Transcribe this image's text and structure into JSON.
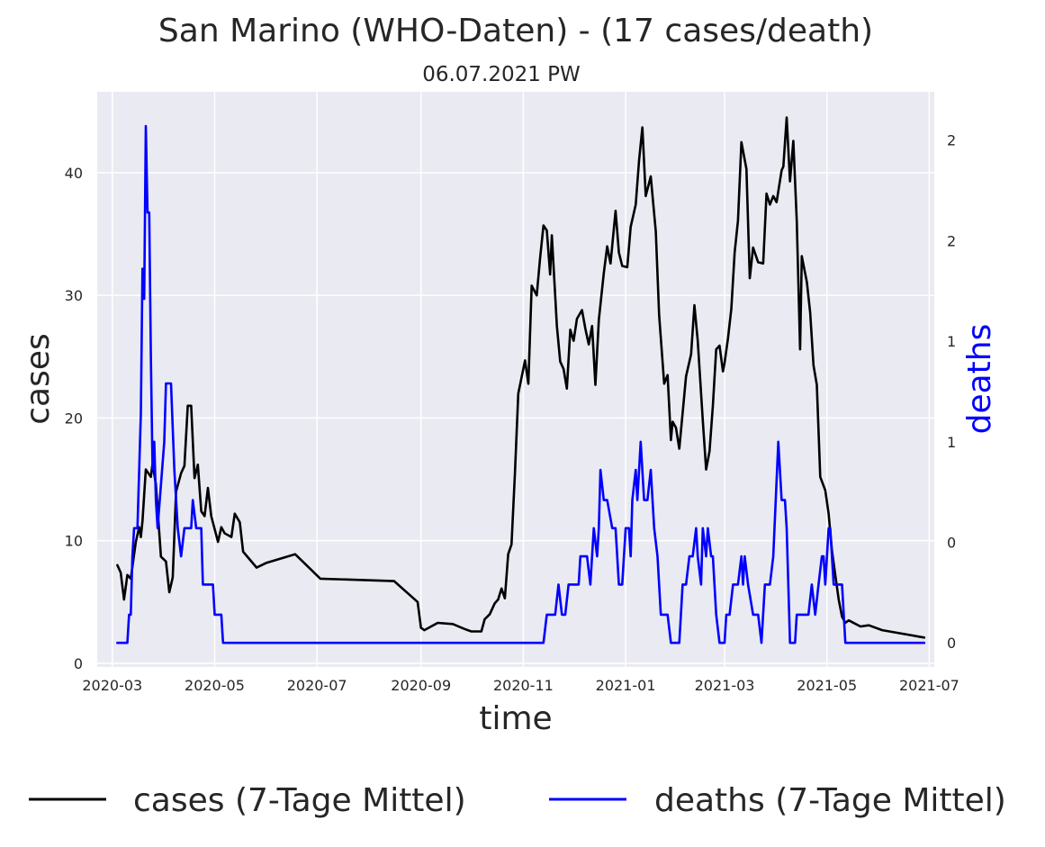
{
  "chart_data": {
    "type": "line",
    "title": "San Marino (WHO-Daten) - (17 cases/death)",
    "subtitle": "06.07.2021 PW",
    "xlabel": "time",
    "ylabel_left": "cases",
    "ylabel_right": "deaths",
    "x_ticks": [
      "2020-03",
      "2020-05",
      "2020-07",
      "2020-09",
      "2020-11",
      "2021-01",
      "2021-03",
      "2021-05",
      "2021-07"
    ],
    "x_range": [
      "2020-02-21",
      "2021-07-04"
    ],
    "y_left_ticks": [
      "0",
      "10",
      "20",
      "30",
      "40"
    ],
    "y_left_range": [
      -0.3,
      46.6
    ],
    "y_right_ticks": [
      {
        "value": 0.0,
        "label": "0"
      },
      {
        "value": 0.5,
        "label": "0"
      },
      {
        "value": 1.0,
        "label": "1"
      },
      {
        "value": 1.5,
        "label": "1"
      },
      {
        "value": 2.0,
        "label": "2"
      },
      {
        "value": 2.5,
        "label": "2"
      }
    ],
    "y_right_range": [
      -0.12,
      2.74
    ],
    "grid": true,
    "legend_position": "bottom",
    "series": [
      {
        "name": "cases (7-Tage Mittel)",
        "axis": "left",
        "color": "#000000",
        "points": [
          [
            "2020-03-04",
            8.0
          ],
          [
            "2020-03-06",
            7.4
          ],
          [
            "2020-03-08",
            5.2
          ],
          [
            "2020-03-10",
            7.2
          ],
          [
            "2020-03-12",
            6.9
          ],
          [
            "2020-03-15",
            9.9
          ],
          [
            "2020-03-17",
            11.1
          ],
          [
            "2020-03-18",
            10.3
          ],
          [
            "2020-03-19",
            11.6
          ],
          [
            "2020-03-21",
            15.8
          ],
          [
            "2020-03-24",
            15.2
          ],
          [
            "2020-03-25",
            16.3
          ],
          [
            "2020-03-27",
            14.6
          ],
          [
            "2020-03-30",
            8.7
          ],
          [
            "2020-04-02",
            8.3
          ],
          [
            "2020-04-04",
            5.8
          ],
          [
            "2020-04-06",
            7.0
          ],
          [
            "2020-04-08",
            14.0
          ],
          [
            "2020-04-11",
            15.5
          ],
          [
            "2020-04-13",
            16.1
          ],
          [
            "2020-04-15",
            21.0
          ],
          [
            "2020-04-17",
            21.0
          ],
          [
            "2020-04-19",
            15.1
          ],
          [
            "2020-04-21",
            16.2
          ],
          [
            "2020-04-23",
            12.4
          ],
          [
            "2020-04-25",
            12.0
          ],
          [
            "2020-04-27",
            14.3
          ],
          [
            "2020-04-29",
            12.0
          ],
          [
            "2020-05-03",
            9.9
          ],
          [
            "2020-05-05",
            11.1
          ],
          [
            "2020-05-07",
            10.6
          ],
          [
            "2020-05-11",
            10.3
          ],
          [
            "2020-05-13",
            12.2
          ],
          [
            "2020-05-16",
            11.5
          ],
          [
            "2020-05-18",
            9.1
          ],
          [
            "2020-05-26",
            7.8
          ],
          [
            "2020-06-01",
            8.2
          ],
          [
            "2020-06-18",
            8.9
          ],
          [
            "2020-07-03",
            6.9
          ],
          [
            "2020-08-16",
            6.7
          ],
          [
            "2020-08-30",
            5.0
          ],
          [
            "2020-09-01",
            2.9
          ],
          [
            "2020-09-03",
            2.7
          ],
          [
            "2020-09-11",
            3.3
          ],
          [
            "2020-09-20",
            3.2
          ],
          [
            "2020-09-27",
            2.8
          ],
          [
            "2020-10-01",
            2.6
          ],
          [
            "2020-10-07",
            2.6
          ],
          [
            "2020-10-09",
            3.6
          ],
          [
            "2020-10-12",
            4.0
          ],
          [
            "2020-10-15",
            4.9
          ],
          [
            "2020-10-17",
            5.2
          ],
          [
            "2020-10-19",
            6.1
          ],
          [
            "2020-10-21",
            5.3
          ],
          [
            "2020-10-23",
            8.9
          ],
          [
            "2020-10-25",
            9.7
          ],
          [
            "2020-10-27",
            15.5
          ],
          [
            "2020-10-29",
            22.0
          ],
          [
            "2020-11-01",
            24.0
          ],
          [
            "2020-11-02",
            24.7
          ],
          [
            "2020-11-04",
            22.8
          ],
          [
            "2020-11-06",
            30.8
          ],
          [
            "2020-11-09",
            30.0
          ],
          [
            "2020-11-11",
            33.0
          ],
          [
            "2020-11-13",
            35.7
          ],
          [
            "2020-11-15",
            35.3
          ],
          [
            "2020-11-17",
            31.7
          ],
          [
            "2020-11-18",
            34.9
          ],
          [
            "2020-11-21",
            27.5
          ],
          [
            "2020-11-23",
            24.6
          ],
          [
            "2020-11-25",
            24.0
          ],
          [
            "2020-11-27",
            22.4
          ],
          [
            "2020-11-29",
            27.2
          ],
          [
            "2020-12-01",
            26.3
          ],
          [
            "2020-12-03",
            28.1
          ],
          [
            "2020-12-06",
            28.8
          ],
          [
            "2020-12-08",
            27.3
          ],
          [
            "2020-12-10",
            26.0
          ],
          [
            "2020-12-12",
            27.5
          ],
          [
            "2020-12-14",
            22.7
          ],
          [
            "2020-12-16",
            28.0
          ],
          [
            "2020-12-19",
            31.8
          ],
          [
            "2020-12-21",
            34.0
          ],
          [
            "2020-12-23",
            32.6
          ],
          [
            "2020-12-26",
            36.9
          ],
          [
            "2020-12-28",
            33.5
          ],
          [
            "2020-12-30",
            32.4
          ],
          [
            "2021-01-02",
            32.3
          ],
          [
            "2021-01-04",
            35.6
          ],
          [
            "2021-01-07",
            37.4
          ],
          [
            "2021-01-09",
            41.0
          ],
          [
            "2021-01-11",
            43.7
          ],
          [
            "2021-01-13",
            38.1
          ],
          [
            "2021-01-16",
            39.7
          ],
          [
            "2021-01-19",
            35.2
          ],
          [
            "2021-01-21",
            28.4
          ],
          [
            "2021-01-24",
            22.8
          ],
          [
            "2021-01-26",
            23.5
          ],
          [
            "2021-01-28",
            18.2
          ],
          [
            "2021-01-29",
            19.7
          ],
          [
            "2021-01-31",
            19.2
          ],
          [
            "2021-02-02",
            17.5
          ],
          [
            "2021-02-05",
            21.9
          ],
          [
            "2021-02-06",
            23.4
          ],
          [
            "2021-02-09",
            25.2
          ],
          [
            "2021-02-11",
            29.2
          ],
          [
            "2021-02-13",
            26.3
          ],
          [
            "2021-02-16",
            19.8
          ],
          [
            "2021-02-18",
            15.8
          ],
          [
            "2021-02-20",
            17.3
          ],
          [
            "2021-02-22",
            21.0
          ],
          [
            "2021-02-24",
            25.6
          ],
          [
            "2021-02-26",
            25.9
          ],
          [
            "2021-02-28",
            23.8
          ],
          [
            "2021-03-01",
            24.5
          ],
          [
            "2021-03-03",
            26.5
          ],
          [
            "2021-03-05",
            28.9
          ],
          [
            "2021-03-07",
            33.5
          ],
          [
            "2021-03-09",
            36.1
          ],
          [
            "2021-03-11",
            42.5
          ],
          [
            "2021-03-14",
            40.3
          ],
          [
            "2021-03-16",
            31.4
          ],
          [
            "2021-03-18",
            33.9
          ],
          [
            "2021-03-21",
            32.7
          ],
          [
            "2021-03-24",
            32.6
          ],
          [
            "2021-03-26",
            38.3
          ],
          [
            "2021-03-28",
            37.4
          ],
          [
            "2021-03-30",
            38.1
          ],
          [
            "2021-04-01",
            37.6
          ],
          [
            "2021-04-04",
            40.2
          ],
          [
            "2021-04-05",
            40.5
          ],
          [
            "2021-04-07",
            44.5
          ],
          [
            "2021-04-09",
            39.3
          ],
          [
            "2021-04-11",
            42.6
          ],
          [
            "2021-04-13",
            36.1
          ],
          [
            "2021-04-15",
            25.6
          ],
          [
            "2021-04-16",
            33.2
          ],
          [
            "2021-04-19",
            31.1
          ],
          [
            "2021-04-21",
            28.6
          ],
          [
            "2021-04-23",
            24.3
          ],
          [
            "2021-04-25",
            22.7
          ],
          [
            "2021-04-27",
            15.2
          ],
          [
            "2021-04-30",
            14.1
          ],
          [
            "2021-05-02",
            12.2
          ],
          [
            "2021-05-04",
            9.2
          ],
          [
            "2021-05-06",
            7.2
          ],
          [
            "2021-05-08",
            5.2
          ],
          [
            "2021-05-10",
            3.8
          ],
          [
            "2021-05-12",
            3.3
          ],
          [
            "2021-05-14",
            3.5
          ],
          [
            "2021-05-21",
            3.0
          ],
          [
            "2021-05-26",
            3.1
          ],
          [
            "2021-06-03",
            2.7
          ],
          [
            "2021-06-28",
            2.1
          ]
        ]
      },
      {
        "name": "deaths (7-Tage Mittel)",
        "axis": "right",
        "color": "#0000ff",
        "points": [
          [
            "2020-03-04",
            0.0
          ],
          [
            "2020-03-10",
            0.0
          ],
          [
            "2020-03-11",
            0.14
          ],
          [
            "2020-03-12",
            0.14
          ],
          [
            "2020-03-13",
            0.43
          ],
          [
            "2020-03-14",
            0.57
          ],
          [
            "2020-03-16",
            0.57
          ],
          [
            "2020-03-18",
            1.14
          ],
          [
            "2020-03-19",
            1.86
          ],
          [
            "2020-03-20",
            1.71
          ],
          [
            "2020-03-21",
            2.57
          ],
          [
            "2020-03-22",
            2.14
          ],
          [
            "2020-03-23",
            2.14
          ],
          [
            "2020-03-24",
            1.43
          ],
          [
            "2020-03-25",
            0.86
          ],
          [
            "2020-03-26",
            1.0
          ],
          [
            "2020-03-27",
            0.71
          ],
          [
            "2020-03-28",
            0.57
          ],
          [
            "2020-04-01",
            1.0
          ],
          [
            "2020-04-02",
            1.29
          ],
          [
            "2020-04-05",
            1.29
          ],
          [
            "2020-04-07",
            0.86
          ],
          [
            "2020-04-09",
            0.57
          ],
          [
            "2020-04-11",
            0.43
          ],
          [
            "2020-04-13",
            0.57
          ],
          [
            "2020-04-17",
            0.57
          ],
          [
            "2020-04-18",
            0.71
          ],
          [
            "2020-04-20",
            0.57
          ],
          [
            "2020-04-23",
            0.57
          ],
          [
            "2020-04-24",
            0.29
          ],
          [
            "2020-04-30",
            0.29
          ],
          [
            "2020-05-01",
            0.14
          ],
          [
            "2020-05-05",
            0.14
          ],
          [
            "2020-05-06",
            0.0
          ],
          [
            "2020-11-13",
            0.0
          ],
          [
            "2020-11-15",
            0.14
          ],
          [
            "2020-11-20",
            0.14
          ],
          [
            "2020-11-22",
            0.29
          ],
          [
            "2020-11-24",
            0.14
          ],
          [
            "2020-11-26",
            0.14
          ],
          [
            "2020-11-28",
            0.29
          ],
          [
            "2020-12-04",
            0.29
          ],
          [
            "2020-12-05",
            0.43
          ],
          [
            "2020-12-09",
            0.43
          ],
          [
            "2020-12-11",
            0.29
          ],
          [
            "2020-12-13",
            0.57
          ],
          [
            "2020-12-15",
            0.43
          ],
          [
            "2020-12-16",
            0.57
          ],
          [
            "2020-12-17",
            0.86
          ],
          [
            "2020-12-19",
            0.71
          ],
          [
            "2020-12-21",
            0.71
          ],
          [
            "2020-12-24",
            0.57
          ],
          [
            "2020-12-26",
            0.57
          ],
          [
            "2020-12-28",
            0.29
          ],
          [
            "2020-12-30",
            0.29
          ],
          [
            "2021-01-01",
            0.57
          ],
          [
            "2021-01-03",
            0.57
          ],
          [
            "2021-01-04",
            0.43
          ],
          [
            "2021-01-05",
            0.71
          ],
          [
            "2021-01-07",
            0.86
          ],
          [
            "2021-01-08",
            0.71
          ],
          [
            "2021-01-10",
            1.0
          ],
          [
            "2021-01-12",
            0.71
          ],
          [
            "2021-01-14",
            0.71
          ],
          [
            "2021-01-16",
            0.86
          ],
          [
            "2021-01-18",
            0.57
          ],
          [
            "2021-01-20",
            0.43
          ],
          [
            "2021-01-22",
            0.14
          ],
          [
            "2021-01-26",
            0.14
          ],
          [
            "2021-01-28",
            0.0
          ],
          [
            "2021-02-02",
            0.0
          ],
          [
            "2021-02-04",
            0.29
          ],
          [
            "2021-02-06",
            0.29
          ],
          [
            "2021-02-08",
            0.43
          ],
          [
            "2021-02-10",
            0.43
          ],
          [
            "2021-02-12",
            0.57
          ],
          [
            "2021-02-13",
            0.43
          ],
          [
            "2021-02-15",
            0.29
          ],
          [
            "2021-02-16",
            0.57
          ],
          [
            "2021-02-18",
            0.43
          ],
          [
            "2021-02-19",
            0.57
          ],
          [
            "2021-02-21",
            0.43
          ],
          [
            "2021-02-22",
            0.43
          ],
          [
            "2021-02-24",
            0.14
          ],
          [
            "2021-02-26",
            0.0
          ],
          [
            "2021-03-01",
            0.0
          ],
          [
            "2021-03-02",
            0.14
          ],
          [
            "2021-03-04",
            0.14
          ],
          [
            "2021-03-06",
            0.29
          ],
          [
            "2021-03-09",
            0.29
          ],
          [
            "2021-03-11",
            0.43
          ],
          [
            "2021-03-12",
            0.29
          ],
          [
            "2021-03-13",
            0.43
          ],
          [
            "2021-03-15",
            0.29
          ],
          [
            "2021-03-18",
            0.14
          ],
          [
            "2021-03-21",
            0.14
          ],
          [
            "2021-03-23",
            0.0
          ],
          [
            "2021-03-25",
            0.29
          ],
          [
            "2021-03-28",
            0.29
          ],
          [
            "2021-03-30",
            0.43
          ],
          [
            "2021-04-02",
            1.0
          ],
          [
            "2021-04-04",
            0.71
          ],
          [
            "2021-04-06",
            0.71
          ],
          [
            "2021-04-07",
            0.57
          ],
          [
            "2021-04-09",
            0.0
          ],
          [
            "2021-04-12",
            0.0
          ],
          [
            "2021-04-13",
            0.14
          ],
          [
            "2021-04-20",
            0.14
          ],
          [
            "2021-04-22",
            0.29
          ],
          [
            "2021-04-24",
            0.14
          ],
          [
            "2021-04-26",
            0.29
          ],
          [
            "2021-04-28",
            0.43
          ],
          [
            "2021-04-29",
            0.43
          ],
          [
            "2021-04-30",
            0.29
          ],
          [
            "2021-05-02",
            0.57
          ],
          [
            "2021-05-03",
            0.57
          ],
          [
            "2021-05-05",
            0.29
          ],
          [
            "2021-05-10",
            0.29
          ],
          [
            "2021-05-12",
            0.0
          ],
          [
            "2021-06-28",
            0.0
          ]
        ]
      }
    ]
  }
}
